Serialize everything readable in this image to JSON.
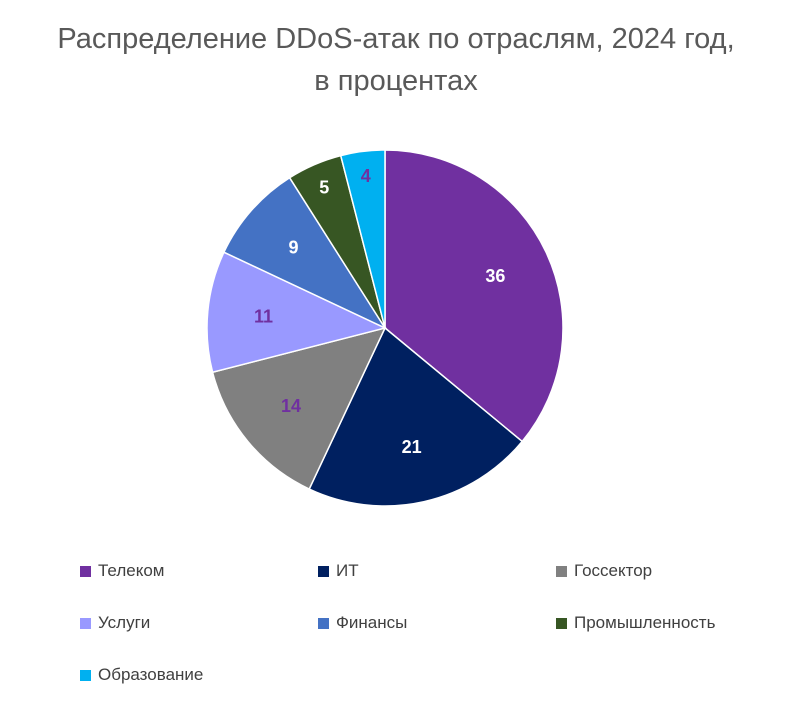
{
  "chart_data": {
    "type": "pie",
    "title_line1": "Распределение DDoS-атак по отраслям, 2024 год,",
    "title_line2": "в процентах",
    "categories": [
      "Телеком",
      "ИТ",
      "Госсектор",
      "Услуги",
      "Финансы",
      "Промышленность",
      "Образование"
    ],
    "values": [
      36,
      21,
      14,
      11,
      9,
      5,
      4
    ],
    "colors": [
      "#7030A0",
      "#002060",
      "#808080",
      "#9999FF",
      "#4472C4",
      "#375623",
      "#00B0F0"
    ],
    "label_colors": [
      "#FFFFFF",
      "#FFFFFF",
      "#7030A0",
      "#7030A0",
      "#FFFFFF",
      "#FFFFFF",
      "#7030A0"
    ],
    "legend_position": "bottom"
  }
}
